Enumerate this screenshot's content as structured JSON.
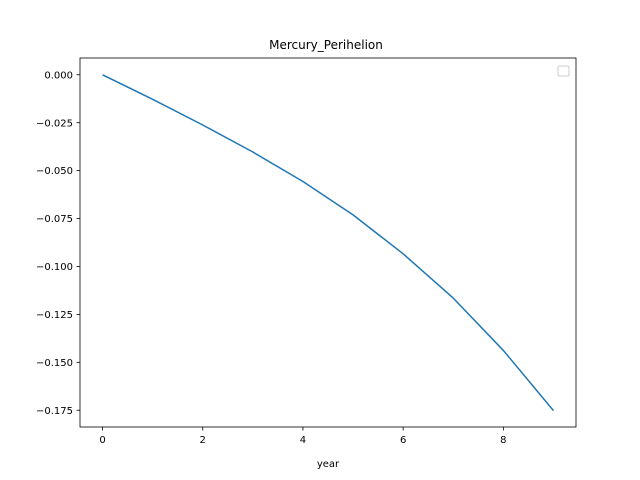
{
  "chart_data": {
    "type": "line",
    "title": "Mercury_Perihelion",
    "xlabel": "year",
    "ylabel": "",
    "xlim": [
      -0.45,
      9.45
    ],
    "ylim": [
      -0.18375,
      0.00875
    ],
    "xticks": [
      0,
      2,
      4,
      6,
      8
    ],
    "xtick_labels": [
      "0",
      "2",
      "4",
      "6",
      "8"
    ],
    "yticks": [
      0.0,
      -0.025,
      -0.05,
      -0.075,
      -0.1,
      -0.125,
      -0.15,
      -0.175
    ],
    "ytick_labels": [
      "0.000",
      "−0.025",
      "−0.050",
      "−0.075",
      "−0.100",
      "−0.125",
      "−0.150",
      "−0.175"
    ],
    "grid": false,
    "legend": {
      "placement": "top-right",
      "entries": []
    },
    "series": [
      {
        "color": "#1f77b4",
        "x": [
          0,
          1,
          2,
          3,
          4,
          5,
          6,
          7,
          8,
          9
        ],
        "y": [
          0.0,
          -0.0128,
          -0.0262,
          -0.0403,
          -0.0557,
          -0.0731,
          -0.0934,
          -0.1165,
          -0.1438,
          -0.1752
        ]
      }
    ]
  }
}
